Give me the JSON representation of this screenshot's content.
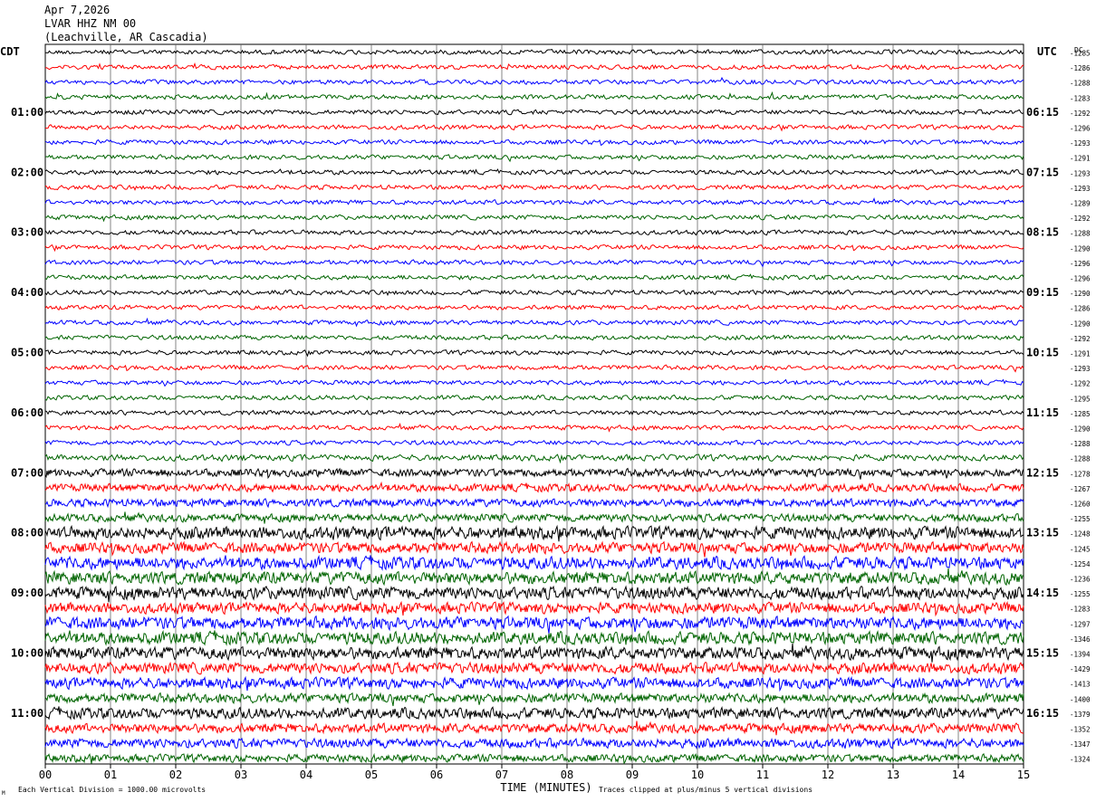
{
  "header": {
    "date": "Apr 7,2026",
    "station": "LVAR HHZ NM 00",
    "location": "(Leachville, AR Cascadia)"
  },
  "left_timezone": "CDT",
  "right_timezone": "UTC",
  "dc_label": "DC",
  "footer": {
    "scale_note": "Each Vertical Division = 1000.00 microvolts",
    "clip_note": "Traces clipped at plus/minus 5 vertical divisions",
    "corner_mark": "M"
  },
  "chart_data": {
    "type": "line",
    "title": "",
    "xlabel": "TIME (MINUTES)",
    "xlim": [
      0,
      15
    ],
    "x_ticks": [
      "00",
      "01",
      "02",
      "03",
      "04",
      "05",
      "06",
      "07",
      "08",
      "09",
      "10",
      "11",
      "12",
      "13",
      "14",
      "15"
    ],
    "trace_colors": [
      "#000000",
      "#ff0000",
      "#0000ff",
      "#006400"
    ],
    "left_hour_labels": [
      "01:00",
      "02:00",
      "03:00",
      "04:00",
      "05:00",
      "06:00",
      "07:00",
      "08:00",
      "09:00",
      "10:00",
      "11:00"
    ],
    "right_hour_labels": [
      "06:15",
      "07:15",
      "08:15",
      "09:15",
      "10:15",
      "11:15",
      "12:15",
      "13:15",
      "14:15",
      "15:15",
      "16:15"
    ],
    "dc_offsets": [
      -1285,
      -1286,
      -1288,
      -1283,
      -1292,
      -1296,
      -1293,
      -1291,
      -1293,
      -1293,
      -1289,
      -1292,
      -1288,
      -1290,
      -1296,
      -1296,
      -1290,
      -1286,
      -1290,
      -1292,
      -1291,
      -1293,
      -1292,
      -1295,
      -1285,
      -1290,
      -1288,
      -1288,
      -1278,
      -1267,
      -1260,
      -1255,
      -1248,
      -1245,
      -1254,
      -1236,
      -1255,
      -1283,
      -1297,
      -1346,
      -1394,
      -1429,
      -1413,
      -1400,
      -1379,
      -1352,
      -1347,
      -1324
    ],
    "trace_amplitude": [
      3,
      3,
      3,
      3,
      3,
      3,
      3,
      3,
      3,
      3,
      3,
      3,
      3,
      3,
      3,
      3,
      3,
      3,
      3,
      3,
      3,
      3,
      3,
      3,
      3,
      3,
      3,
      4,
      5,
      5,
      5,
      5,
      8,
      7,
      8,
      8,
      8,
      7,
      8,
      8,
      8,
      7,
      7,
      6,
      7,
      6,
      6,
      5
    ]
  }
}
